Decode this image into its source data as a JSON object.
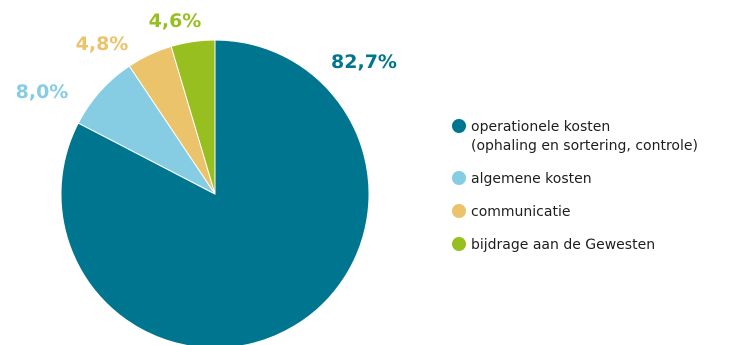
{
  "chart_data": {
    "type": "pie",
    "slices": [
      {
        "label": "operationele kosten (ophaling en sortering, controle)",
        "value": 82.7,
        "value_label": "82,7%",
        "color": "#00758f"
      },
      {
        "label": "algemene kosten",
        "value": 8.0,
        "value_label": "8,0%",
        "color": "#86cde3"
      },
      {
        "label": "communicatie",
        "value": 4.8,
        "value_label": "4,8%",
        "color": "#eac36a"
      },
      {
        "label": "bijdrage aan de Gewesten",
        "value": 4.6,
        "value_label": "4,6%",
        "color": "#97bf1f"
      }
    ],
    "start_angle": "12 o'clock",
    "direction": "clockwise",
    "legend_position": "right"
  },
  "legend": {
    "items": [
      {
        "line1": "operationele kosten",
        "line2": "(ophaling en sortering, controle)"
      },
      {
        "line1": "algemene kosten",
        "line2": ""
      },
      {
        "line1": "communicatie",
        "line2": ""
      },
      {
        "line1": "bijdrage aan de Gewesten",
        "line2": ""
      }
    ]
  }
}
